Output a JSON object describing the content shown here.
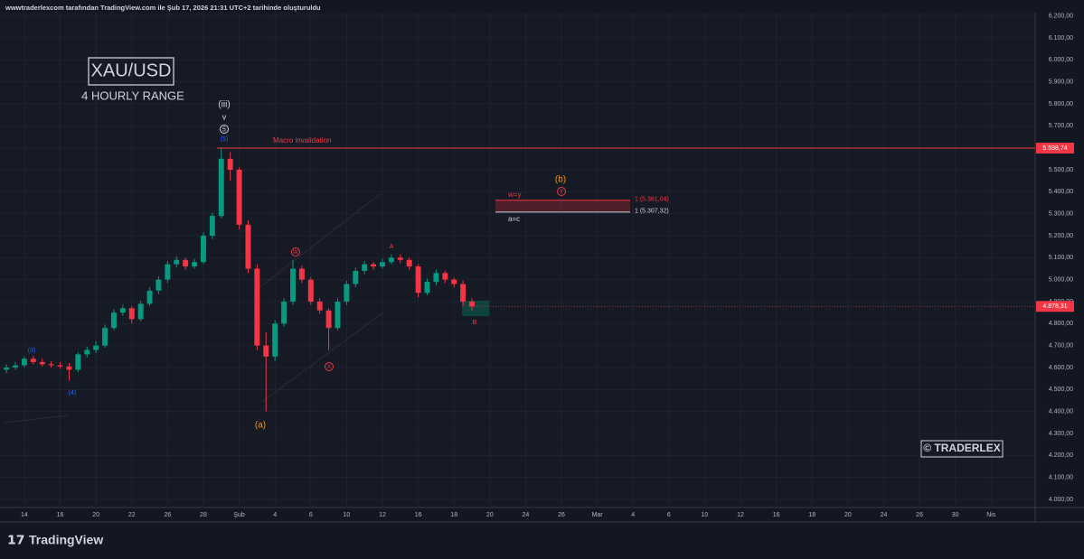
{
  "header": "wwwtraderlexcom tarafından TradingView.com ile Şub 17, 2026 21:31 UTC+2 tarihinde oluşturuldu",
  "footer": "TradingView",
  "chart_data": {
    "type": "candlestick",
    "title": "XAU/USD",
    "subtitle": "4 HOURLY RANGE",
    "watermark": "© TRADERLEX",
    "up_color": "#089981",
    "down_color": "#f23645",
    "x": [
      -1,
      -0.5,
      0,
      0.5,
      1,
      1.5,
      2,
      2.5,
      3,
      3.5,
      4,
      4.5,
      5,
      5.5,
      6,
      6.5,
      7,
      7.5,
      8,
      8.5,
      9,
      9.5,
      10,
      10.5,
      11,
      11.5,
      12,
      12.5,
      13,
      13.5,
      14,
      14.5,
      15,
      15.5,
      16,
      16.5,
      17,
      17.5,
      18,
      18.5,
      19,
      19.5,
      20,
      20.5,
      21,
      21.5,
      22,
      22.5,
      23,
      23.5,
      24,
      24.5,
      25
    ],
    "open": [
      4590,
      4600,
      4610,
      4640,
      4625,
      4615,
      4610,
      4605,
      4590,
      4660,
      4680,
      4700,
      4780,
      4850,
      4870,
      4820,
      4890,
      4950,
      5000,
      5070,
      5090,
      5060,
      5080,
      5200,
      5290,
      5550,
      5500,
      5250,
      5050,
      4700,
      4650,
      4800,
      4900,
      5050,
      5000,
      4900,
      4860,
      4780,
      4900,
      4980,
      5040,
      5070,
      5060,
      5080,
      5100,
      5090,
      5060,
      4940,
      4990,
      5030,
      5000,
      4980,
      4900
    ],
    "high": [
      4615,
      4625,
      4650,
      4655,
      4640,
      4630,
      4625,
      4620,
      4670,
      4695,
      4720,
      4795,
      4865,
      4885,
      4880,
      4905,
      4965,
      5015,
      5085,
      5105,
      5100,
      5095,
      5215,
      5305,
      5598,
      5580,
      5510,
      5270,
      5070,
      4760,
      4815,
      4915,
      5090,
      5065,
      5010,
      4915,
      4870,
      4915,
      4995,
      5055,
      5085,
      5080,
      5095,
      5115,
      5115,
      5100,
      5070,
      5005,
      5045,
      5040,
      5010,
      4995,
      4915
    ],
    "low": [
      4575,
      4590,
      4600,
      4615,
      4605,
      4600,
      4595,
      4540,
      4580,
      4645,
      4665,
      4690,
      4770,
      4835,
      4800,
      4810,
      4880,
      4935,
      4985,
      5055,
      5045,
      5050,
      5070,
      5185,
      5280,
      5450,
      5230,
      5030,
      4680,
      4400,
      4630,
      4785,
      4885,
      4985,
      4885,
      4845,
      4680,
      4770,
      4885,
      4965,
      5025,
      5045,
      5050,
      5070,
      5075,
      5045,
      4920,
      4930,
      4975,
      4985,
      4965,
      4880,
      4860
    ],
    "close": [
      4600,
      4610,
      4640,
      4625,
      4615,
      4610,
      4605,
      4590,
      4660,
      4680,
      4700,
      4780,
      4850,
      4870,
      4820,
      4890,
      4950,
      5000,
      5070,
      5090,
      5060,
      5080,
      5200,
      5290,
      5550,
      5500,
      5250,
      5050,
      4700,
      4650,
      4800,
      4900,
      5050,
      5000,
      4900,
      4860,
      4780,
      4900,
      4980,
      5040,
      5070,
      5060,
      5080,
      5100,
      5090,
      5060,
      4940,
      4990,
      5030,
      5000,
      4980,
      4900,
      4878.31
    ],
    "xlim": [
      -1.36,
      56.46
    ],
    "xticks": [
      {
        "value": 0,
        "label": "14"
      },
      {
        "value": 2,
        "label": "16"
      },
      {
        "value": 4,
        "label": "20"
      },
      {
        "value": 6,
        "label": "22"
      },
      {
        "value": 8,
        "label": "26"
      },
      {
        "value": 10,
        "label": "28"
      },
      {
        "value": 12,
        "label": "Şub"
      },
      {
        "value": 14,
        "label": "4"
      },
      {
        "value": 16,
        "label": "6"
      },
      {
        "value": 18,
        "label": "10"
      },
      {
        "value": 20,
        "label": "12"
      },
      {
        "value": 22,
        "label": "16"
      },
      {
        "value": 24,
        "label": "18"
      },
      {
        "value": 26,
        "label": "20"
      },
      {
        "value": 28,
        "label": "24"
      },
      {
        "value": 30,
        "label": "26"
      },
      {
        "value": 32,
        "label": "Mar"
      },
      {
        "value": 34,
        "label": "4"
      },
      {
        "value": 36,
        "label": "6"
      },
      {
        "value": 38,
        "label": "10"
      },
      {
        "value": 40,
        "label": "12"
      },
      {
        "value": 42,
        "label": "16"
      },
      {
        "value": 44,
        "label": "18"
      },
      {
        "value": 46,
        "label": "20"
      },
      {
        "value": 48,
        "label": "24"
      },
      {
        "value": 50,
        "label": "26"
      },
      {
        "value": 52,
        "label": "30"
      },
      {
        "value": 54,
        "label": "Nis"
      }
    ],
    "ylim": [
      3963,
      6215
    ],
    "yticks": [
      {
        "value": 4000,
        "label": "4.000,00"
      },
      {
        "value": 4100,
        "label": "4.100,00"
      },
      {
        "value": 4200,
        "label": "4.200,00"
      },
      {
        "value": 4300,
        "label": "4.300,00"
      },
      {
        "value": 4400,
        "label": "4.400,00"
      },
      {
        "value": 4500,
        "label": "4.500,00"
      },
      {
        "value": 4600,
        "label": "4.600,00"
      },
      {
        "value": 4700,
        "label": "4.700,00"
      },
      {
        "value": 4800,
        "label": "4.800,00"
      },
      {
        "value": 4900,
        "label": "4.900,00"
      },
      {
        "value": 5000,
        "label": "5.000,00"
      },
      {
        "value": 5100,
        "label": "5.100,00"
      },
      {
        "value": 5200,
        "label": "5.200,00"
      },
      {
        "value": 5300,
        "label": "5.300,00"
      },
      {
        "value": 5400,
        "label": "5.400,00"
      },
      {
        "value": 5500,
        "label": "5.500,00"
      },
      {
        "value": 5600,
        "label": "5.600,00"
      },
      {
        "value": 5700,
        "label": "5.700,00"
      },
      {
        "value": 5800,
        "label": "5.800,00"
      },
      {
        "value": 5900,
        "label": "5.900,00"
      },
      {
        "value": 6000,
        "label": "6.000,00"
      },
      {
        "value": 6100,
        "label": "6.100,00"
      },
      {
        "value": 6200,
        "label": "6.200,00"
      }
    ],
    "invalidation": {
      "name": "Macro invalidation",
      "value": 5598.74,
      "label": "5.598,74"
    },
    "last_price": {
      "value": 4878.31,
      "label": "4.878,31"
    },
    "fib_levels": [
      {
        "value": 5361.04,
        "label": "1 (5.361,04)"
      },
      {
        "value": 5307.32,
        "label": "1 (5.307,32)"
      }
    ],
    "annotations": [
      "(iii)",
      "v",
      "5",
      "(5)",
      "(b)",
      "Y",
      "w=y",
      "c",
      "a=c",
      "W",
      "A",
      "X",
      "B",
      "(a)",
      "(3)",
      "(4)"
    ]
  }
}
